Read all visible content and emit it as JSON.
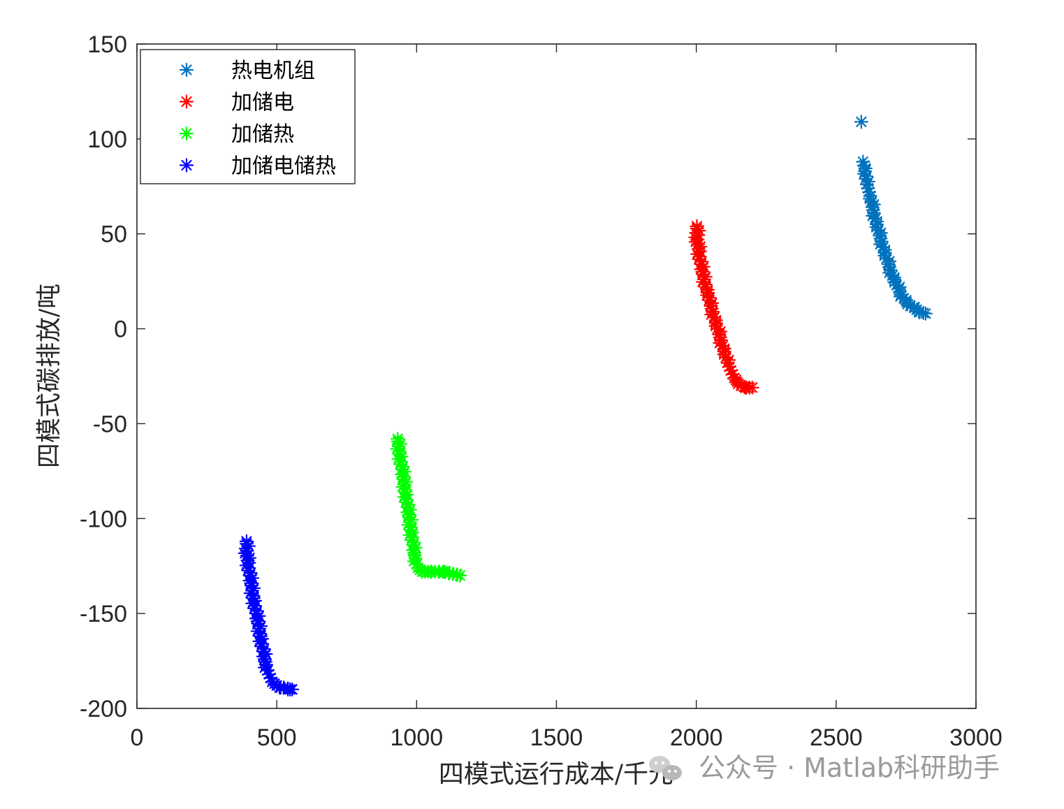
{
  "chart_data": {
    "type": "scatter",
    "xlabel": "四模式运行成本/千元",
    "ylabel": "四模式碳排放/吨",
    "xlim": [
      0,
      3000
    ],
    "ylim": [
      -200,
      150
    ],
    "x_ticks": [
      0,
      500,
      1000,
      1500,
      2000,
      2500,
      3000
    ],
    "y_ticks": [
      150,
      100,
      50,
      0,
      -50,
      -100,
      -150,
      -200
    ],
    "marker": "*",
    "grid": false,
    "legend_position": "top-left",
    "series": [
      {
        "name": "热电机组",
        "color": "#0072BD",
        "points": [
          [
            2590,
            109
          ],
          [
            2596,
            88
          ],
          [
            2600,
            86
          ],
          [
            2603,
            83
          ],
          [
            2606,
            79
          ],
          [
            2610,
            76
          ],
          [
            2614,
            74
          ],
          [
            2618,
            72
          ],
          [
            2622,
            70
          ],
          [
            2626,
            67
          ],
          [
            2630,
            64
          ],
          [
            2635,
            61
          ],
          [
            2640,
            58
          ],
          [
            2645,
            55
          ],
          [
            2650,
            52
          ],
          [
            2656,
            49
          ],
          [
            2662,
            46
          ],
          [
            2668,
            43
          ],
          [
            2674,
            40
          ],
          [
            2680,
            37
          ],
          [
            2687,
            34
          ],
          [
            2694,
            31
          ],
          [
            2701,
            28
          ],
          [
            2708,
            26
          ],
          [
            2716,
            23
          ],
          [
            2724,
            21
          ],
          [
            2732,
            18
          ],
          [
            2742,
            16
          ],
          [
            2752,
            14
          ],
          [
            2765,
            12
          ],
          [
            2780,
            11
          ],
          [
            2796,
            9
          ],
          [
            2820,
            8
          ]
        ]
      },
      {
        "name": "加储电",
        "color": "#FF0000",
        "points": [
          [
            2002,
            54
          ],
          [
            2004,
            47
          ],
          [
            2008,
            42
          ],
          [
            2012,
            38
          ],
          [
            2017,
            34
          ],
          [
            2022,
            30
          ],
          [
            2028,
            26
          ],
          [
            2034,
            22
          ],
          [
            2040,
            19
          ],
          [
            2046,
            15
          ],
          [
            2052,
            12
          ],
          [
            2058,
            9
          ],
          [
            2064,
            6
          ],
          [
            2070,
            3
          ],
          [
            2076,
            0
          ],
          [
            2082,
            -3
          ],
          [
            2088,
            -6
          ],
          [
            2094,
            -9
          ],
          [
            2100,
            -12
          ],
          [
            2106,
            -15
          ],
          [
            2112,
            -18
          ],
          [
            2118,
            -20
          ],
          [
            2124,
            -22
          ],
          [
            2130,
            -24
          ],
          [
            2136,
            -26
          ],
          [
            2142,
            -27
          ],
          [
            2150,
            -29
          ],
          [
            2160,
            -30
          ],
          [
            2175,
            -31
          ],
          [
            2190,
            -31
          ],
          [
            2200,
            -31
          ]
        ]
      },
      {
        "name": "加储热",
        "color": "#00FF00",
        "points": [
          [
            932,
            -58
          ],
          [
            936,
            -62
          ],
          [
            940,
            -66
          ],
          [
            944,
            -70
          ],
          [
            948,
            -74
          ],
          [
            952,
            -78
          ],
          [
            956,
            -82
          ],
          [
            960,
            -86
          ],
          [
            964,
            -90
          ],
          [
            968,
            -94
          ],
          [
            972,
            -98
          ],
          [
            976,
            -102
          ],
          [
            980,
            -106
          ],
          [
            984,
            -110
          ],
          [
            988,
            -114
          ],
          [
            992,
            -118
          ],
          [
            996,
            -121
          ],
          [
            1000,
            -124
          ],
          [
            1005,
            -126
          ],
          [
            1012,
            -127
          ],
          [
            1020,
            -128
          ],
          [
            1030,
            -128
          ],
          [
            1041,
            -128
          ],
          [
            1098,
            -128
          ],
          [
            1155,
            -130
          ]
        ]
      },
      {
        "name": "加储电储热",
        "color": "#0000FF",
        "points": [
          [
            392,
            -112
          ],
          [
            393,
            -117
          ],
          [
            396,
            -122
          ],
          [
            400,
            -126
          ],
          [
            404,
            -130
          ],
          [
            408,
            -134
          ],
          [
            412,
            -138
          ],
          [
            417,
            -142
          ],
          [
            422,
            -146
          ],
          [
            427,
            -150
          ],
          [
            432,
            -154
          ],
          [
            437,
            -158
          ],
          [
            442,
            -162
          ],
          [
            447,
            -166
          ],
          [
            452,
            -170
          ],
          [
            457,
            -174
          ],
          [
            462,
            -177
          ],
          [
            467,
            -180
          ],
          [
            472,
            -182
          ],
          [
            478,
            -184
          ],
          [
            484,
            -186
          ],
          [
            492,
            -187
          ],
          [
            500,
            -188
          ],
          [
            510,
            -189
          ],
          [
            525,
            -189
          ],
          [
            540,
            -190
          ],
          [
            555,
            -190
          ]
        ]
      }
    ]
  },
  "watermark": {
    "text": "公众号 · Matlab科研助手"
  }
}
